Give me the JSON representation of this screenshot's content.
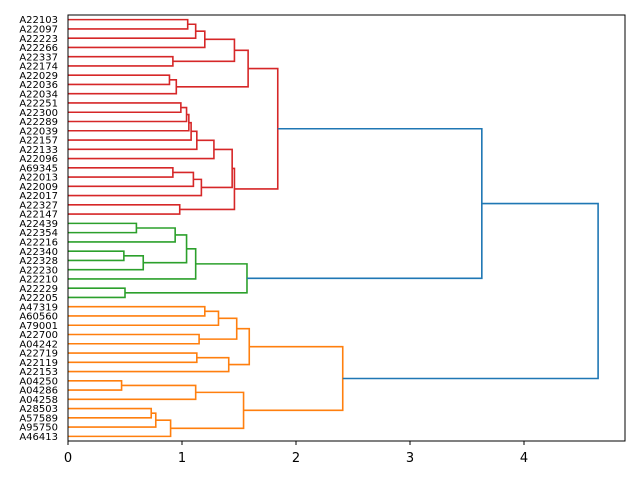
{
  "chart_data": {
    "type": "dendrogram",
    "orientation": "left",
    "title": "",
    "xlabel": "",
    "ylabel": "",
    "xlim": [
      0,
      4.886
    ],
    "xticks": [
      "0",
      "1",
      "2",
      "3",
      "4"
    ],
    "colors": {
      "red": "#d62728",
      "green": "#2ca02c",
      "orange": "#ff7f0e",
      "blue": "#1f77b4"
    },
    "leaves": [
      "A22103",
      "A22097",
      "A22223",
      "A22266",
      "A22337",
      "A22174",
      "A22029",
      "A22036",
      "A22034",
      "A22251",
      "A22300",
      "A22289",
      "A22039",
      "A22157",
      "A22133",
      "A22096",
      "A69345",
      "A22013",
      "A22009",
      "A22017",
      "A22327",
      "A22147",
      "A22439",
      "A22354",
      "A22216",
      "A22340",
      "A22328",
      "A22230",
      "A22210",
      "A22229",
      "A22205",
      "A47319",
      "A60560",
      "A79001",
      "A22700",
      "A04242",
      "A22719",
      "A22119",
      "A22153",
      "A04250",
      "A04286",
      "A04258",
      "A28503",
      "A57589",
      "A95750",
      "A46413"
    ],
    "tree": {
      "h": 4.65,
      "c": "blue",
      "k": [
        {
          "h": 3.63,
          "c": "blue",
          "k": [
            {
              "h": 1.84,
              "c": "red",
              "k": [
                {
                  "h": 1.58,
                  "c": "red",
                  "k": [
                    {
                      "h": 1.46,
                      "c": "red",
                      "k": [
                        {
                          "h": 1.2,
                          "c": "red",
                          "k": [
                            {
                              "h": 1.12,
                              "c": "red",
                              "k": [
                                {
                                  "h": 1.05,
                                  "c": "red",
                                  "k": [
                                    0,
                                    1
                                  ]
                                },
                                2
                              ]
                            },
                            3
                          ]
                        },
                        {
                          "h": 0.92,
                          "c": "red",
                          "k": [
                            4,
                            5
                          ]
                        }
                      ]
                    },
                    {
                      "h": 0.95,
                      "c": "red",
                      "k": [
                        {
                          "h": 0.89,
                          "c": "red",
                          "k": [
                            6,
                            7
                          ]
                        },
                        8
                      ]
                    }
                  ]
                },
                {
                  "h": 1.46,
                  "c": "red",
                  "k": [
                    {
                      "h": 1.44,
                      "c": "red",
                      "k": [
                        {
                          "h": 1.28,
                          "c": "red",
                          "k": [
                            {
                              "h": 1.13,
                              "c": "red",
                              "k": [
                                {
                                  "h": 1.08,
                                  "c": "red",
                                  "k": [
                                    {
                                      "h": 1.06,
                                      "c": "red",
                                      "k": [
                                        {
                                          "h": 1.04,
                                          "c": "red",
                                          "k": [
                                            {
                                              "h": 0.99,
                                              "c": "red",
                                              "k": [
                                                9,
                                                10
                                              ]
                                            },
                                            11
                                          ]
                                        },
                                        12
                                      ]
                                    },
                                    13
                                  ]
                                },
                                14
                              ]
                            },
                            15
                          ]
                        },
                        {
                          "h": 1.17,
                          "c": "red",
                          "k": [
                            {
                              "h": 1.1,
                              "c": "red",
                              "k": [
                                {
                                  "h": 0.92,
                                  "c": "red",
                                  "k": [
                                    16,
                                    17
                                  ]
                                },
                                18
                              ]
                            },
                            19
                          ]
                        }
                      ]
                    },
                    {
                      "h": 0.98,
                      "c": "red",
                      "k": [
                        20,
                        21
                      ]
                    }
                  ]
                }
              ]
            },
            {
              "h": 1.57,
              "c": "green",
              "k": [
                {
                  "h": 1.12,
                  "c": "green",
                  "k": [
                    {
                      "h": 1.04,
                      "c": "green",
                      "k": [
                        {
                          "h": 0.94,
                          "c": "green",
                          "k": [
                            {
                              "h": 0.6,
                              "c": "green",
                              "k": [
                                22,
                                23
                              ]
                            },
                            24
                          ]
                        },
                        {
                          "h": 0.66,
                          "c": "green",
                          "k": [
                            {
                              "h": 0.49,
                              "c": "green",
                              "k": [
                                25,
                                26
                              ]
                            },
                            27
                          ]
                        }
                      ]
                    },
                    28
                  ]
                },
                {
                  "h": 0.5,
                  "c": "green",
                  "k": [
                    29,
                    30
                  ]
                }
              ]
            }
          ]
        },
        {
          "h": 2.41,
          "c": "orange",
          "k": [
            {
              "h": 1.59,
              "c": "orange",
              "k": [
                {
                  "h": 1.48,
                  "c": "orange",
                  "k": [
                    {
                      "h": 1.32,
                      "c": "orange",
                      "k": [
                        {
                          "h": 1.2,
                          "c": "orange",
                          "k": [
                            31,
                            32
                          ]
                        },
                        33
                      ]
                    },
                    {
                      "h": 1.15,
                      "c": "orange",
                      "k": [
                        34,
                        35
                      ]
                    }
                  ]
                },
                {
                  "h": 1.41,
                  "c": "orange",
                  "k": [
                    {
                      "h": 1.13,
                      "c": "orange",
                      "k": [
                        36,
                        37
                      ]
                    },
                    38
                  ]
                }
              ]
            },
            {
              "h": 1.54,
              "c": "orange",
              "k": [
                {
                  "h": 1.12,
                  "c": "orange",
                  "k": [
                    {
                      "h": 0.47,
                      "c": "orange",
                      "k": [
                        39,
                        40
                      ]
                    },
                    41
                  ]
                },
                {
                  "h": 0.9,
                  "c": "orange",
                  "k": [
                    {
                      "h": 0.77,
                      "c": "orange",
                      "k": [
                        {
                          "h": 0.73,
                          "c": "orange",
                          "k": [
                            42,
                            43
                          ]
                        },
                        44
                      ]
                    },
                    45
                  ]
                }
              ]
            }
          ]
        }
      ]
    }
  }
}
